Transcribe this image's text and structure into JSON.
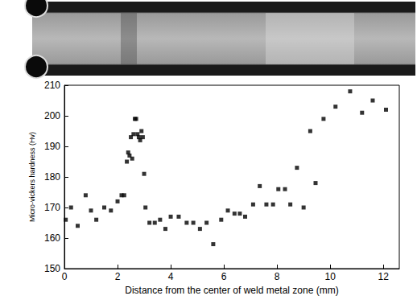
{
  "chart_data": {
    "type": "scatter",
    "x_label": "Distance from the center of weld metal zone (mm)",
    "y_label": "Micro-vickers hardness (Hv)",
    "x": [
      0.05,
      0.25,
      0.5,
      0.8,
      1.0,
      1.2,
      1.5,
      1.75,
      2.0,
      2.15,
      2.25,
      2.35,
      2.4,
      2.45,
      2.5,
      2.55,
      2.6,
      2.65,
      2.7,
      2.75,
      2.8,
      2.85,
      2.9,
      2.95,
      3.0,
      3.05,
      3.2,
      3.4,
      3.6,
      3.8,
      4.0,
      4.3,
      4.6,
      4.85,
      5.1,
      5.35,
      5.6,
      5.9,
      6.15,
      6.4,
      6.6,
      6.8,
      7.1,
      7.35,
      7.6,
      7.85,
      8.05,
      8.3,
      8.5,
      8.75,
      9.0,
      9.25,
      9.45,
      9.75,
      10.2,
      10.75,
      11.2,
      11.6,
      12.1
    ],
    "values": [
      166,
      170,
      164,
      174,
      169,
      166,
      170,
      169,
      172,
      174,
      174,
      185,
      188,
      187,
      193,
      186,
      194,
      199,
      199,
      194,
      193,
      192,
      195,
      193,
      181,
      170,
      165,
      165,
      166,
      163,
      167,
      167,
      165,
      165,
      163,
      165,
      158,
      166,
      169,
      168,
      168,
      167,
      171,
      177,
      171,
      171,
      176,
      176,
      171,
      183,
      170,
      195,
      178,
      199,
      203,
      208,
      201,
      205,
      202
    ],
    "color": "#000000",
    "marker": "square",
    "xlim": [
      0,
      12.6
    ],
    "xticks": [
      0,
      2,
      4,
      6,
      8,
      10,
      12
    ],
    "ylim": [
      150,
      210
    ],
    "yticks": [
      150,
      160,
      170,
      180,
      190,
      200,
      210
    ],
    "grid": false
  }
}
